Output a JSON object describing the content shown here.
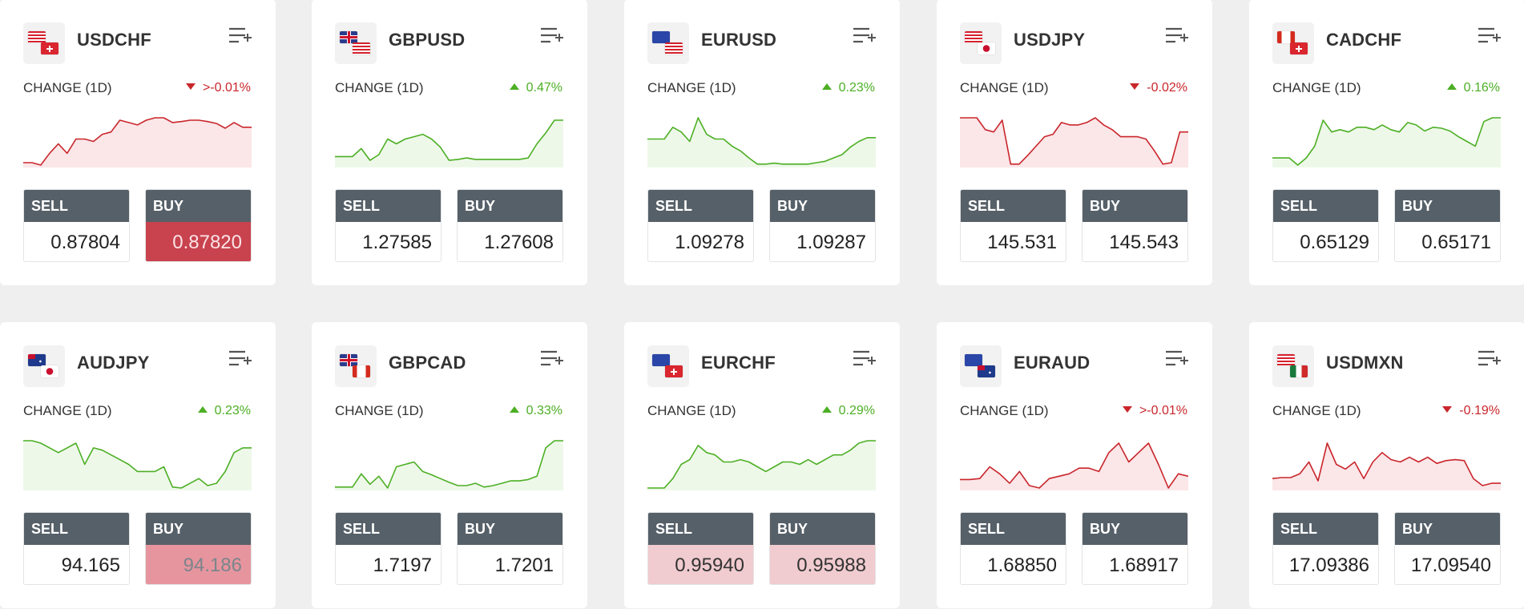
{
  "labels": {
    "change": "CHANGE (1D)",
    "sell": "SELL",
    "buy": "BUY"
  },
  "colors": {
    "up": "#4caf24",
    "down": "#c9262b",
    "button_header": "#566069"
  },
  "cards": [
    {
      "symbol": "USDCHF",
      "flags": [
        "us",
        "ch"
      ],
      "change": ">-0.01%",
      "dir": "down",
      "sell": "0.87804",
      "buy": "0.87820",
      "sell_state": "normal",
      "buy_state": "red",
      "spark": [
        0.05,
        0.05,
        0.0,
        0.25,
        0.45,
        0.25,
        0.55,
        0.55,
        0.5,
        0.65,
        0.7,
        0.95,
        0.9,
        0.85,
        0.95,
        1.0,
        1.0,
        0.9,
        0.92,
        0.95,
        0.95,
        0.92,
        0.88,
        0.78,
        0.9,
        0.8,
        0.8
      ]
    },
    {
      "symbol": "GBPUSD",
      "flags": [
        "gb",
        "us"
      ],
      "change": "0.47%",
      "dir": "up",
      "sell": "1.27585",
      "buy": "1.27608",
      "sell_state": "normal",
      "buy_state": "normal",
      "spark": [
        0.18,
        0.18,
        0.18,
        0.35,
        0.1,
        0.22,
        0.55,
        0.45,
        0.55,
        0.6,
        0.65,
        0.55,
        0.38,
        0.1,
        0.12,
        0.15,
        0.12,
        0.12,
        0.12,
        0.12,
        0.12,
        0.12,
        0.15,
        0.45,
        0.68,
        0.95,
        0.95
      ]
    },
    {
      "symbol": "EURUSD",
      "flags": [
        "eu",
        "us"
      ],
      "change": "0.23%",
      "dir": "up",
      "sell": "1.09278",
      "buy": "1.09287",
      "sell_state": "normal",
      "buy_state": "normal",
      "spark": [
        0.55,
        0.55,
        0.55,
        0.8,
        0.7,
        0.5,
        1.0,
        0.65,
        0.55,
        0.55,
        0.4,
        0.3,
        0.15,
        0.02,
        0.02,
        0.04,
        0.02,
        0.02,
        0.02,
        0.02,
        0.05,
        0.08,
        0.15,
        0.22,
        0.38,
        0.5,
        0.58,
        0.58
      ]
    },
    {
      "symbol": "USDJPY",
      "flags": [
        "us",
        "jp"
      ],
      "change": "-0.02%",
      "dir": "down",
      "sell": "145.531",
      "buy": "145.543",
      "sell_state": "normal",
      "buy_state": "normal",
      "spark": [
        1.0,
        1.0,
        1.0,
        0.75,
        0.7,
        0.95,
        0.02,
        0.02,
        0.2,
        0.4,
        0.6,
        0.65,
        0.9,
        0.85,
        0.85,
        0.9,
        1.0,
        0.85,
        0.75,
        0.6,
        0.6,
        0.6,
        0.55,
        0.3,
        0.02,
        0.05,
        0.7,
        0.7
      ]
    },
    {
      "symbol": "CADCHF",
      "flags": [
        "ca",
        "ch"
      ],
      "change": "0.16%",
      "dir": "up",
      "sell": "0.65129",
      "buy": "0.65171",
      "sell_state": "normal",
      "buy_state": "normal",
      "spark": [
        0.15,
        0.15,
        0.15,
        0.0,
        0.15,
        0.4,
        0.95,
        0.7,
        0.75,
        0.7,
        0.8,
        0.8,
        0.75,
        0.85,
        0.75,
        0.7,
        0.9,
        0.85,
        0.72,
        0.8,
        0.78,
        0.72,
        0.6,
        0.5,
        0.4,
        0.92,
        1.0,
        1.0
      ]
    },
    {
      "symbol": "AUDJPY",
      "flags": [
        "au",
        "jp"
      ],
      "change": "0.23%",
      "dir": "up",
      "sell": "94.165",
      "buy": "94.186",
      "sell_state": "normal",
      "buy_state": "pink",
      "spark": [
        1.0,
        1.0,
        0.95,
        0.85,
        0.75,
        0.85,
        0.95,
        0.5,
        0.85,
        0.8,
        0.7,
        0.6,
        0.5,
        0.35,
        0.35,
        0.35,
        0.45,
        0.02,
        0.0,
        0.1,
        0.2,
        0.05,
        0.1,
        0.35,
        0.75,
        0.85,
        0.85
      ]
    },
    {
      "symbol": "GBPCAD",
      "flags": [
        "gb",
        "ca"
      ],
      "change": "0.33%",
      "dir": "up",
      "sell": "1.7197",
      "buy": "1.7201",
      "sell_state": "normal",
      "buy_state": "normal",
      "spark": [
        0.02,
        0.02,
        0.02,
        0.3,
        0.08,
        0.25,
        0.0,
        0.45,
        0.5,
        0.55,
        0.35,
        0.28,
        0.2,
        0.12,
        0.05,
        0.05,
        0.1,
        0.02,
        0.05,
        0.1,
        0.15,
        0.15,
        0.18,
        0.25,
        0.85,
        1.0,
        1.0
      ]
    },
    {
      "symbol": "EURCHF",
      "flags": [
        "eu",
        "ch"
      ],
      "change": "0.29%",
      "dir": "up",
      "sell": "0.95940",
      "buy": "0.95988",
      "sell_state": "lpink",
      "buy_state": "lpink",
      "spark": [
        0.0,
        0.0,
        0.0,
        0.2,
        0.5,
        0.6,
        0.9,
        0.75,
        0.7,
        0.55,
        0.55,
        0.6,
        0.55,
        0.45,
        0.35,
        0.45,
        0.55,
        0.55,
        0.5,
        0.6,
        0.5,
        0.6,
        0.7,
        0.7,
        0.8,
        0.95,
        1.0,
        1.0
      ]
    },
    {
      "symbol": "EURAUD",
      "flags": [
        "eu",
        "au"
      ],
      "change": ">-0.01%",
      "dir": "down",
      "sell": "1.68850",
      "buy": "1.68917",
      "sell_state": "normal",
      "buy_state": "normal",
      "spark": [
        0.18,
        0.18,
        0.2,
        0.45,
        0.3,
        0.1,
        0.35,
        0.05,
        0.0,
        0.2,
        0.25,
        0.3,
        0.42,
        0.42,
        0.35,
        0.75,
        0.95,
        0.55,
        0.75,
        0.95,
        0.5,
        0.0,
        0.3,
        0.25
      ]
    },
    {
      "symbol": "USDMXN",
      "flags": [
        "us",
        "mx"
      ],
      "change": "-0.19%",
      "dir": "down",
      "sell": "17.09386",
      "buy": "17.09540",
      "sell_state": "normal",
      "buy_state": "normal",
      "spark": [
        0.2,
        0.22,
        0.22,
        0.3,
        0.55,
        0.15,
        0.95,
        0.5,
        0.4,
        0.55,
        0.2,
        0.55,
        0.75,
        0.6,
        0.55,
        0.65,
        0.55,
        0.65,
        0.52,
        0.58,
        0.6,
        0.58,
        0.2,
        0.05,
        0.1,
        0.1
      ]
    }
  ]
}
